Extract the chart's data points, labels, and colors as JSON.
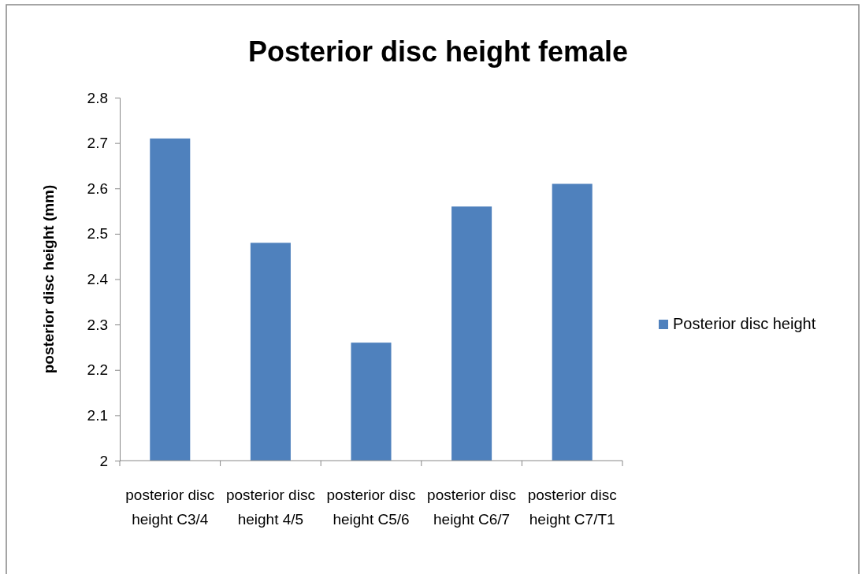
{
  "chart_data": {
    "type": "bar",
    "title": "Posterior disc height female",
    "ylabel": "posterior disc height (mm)",
    "categories": [
      "posterior disc height C3/4",
      "posterior disc height 4/5",
      "posterior disc height C5/6",
      "posterior disc height C6/7",
      "posterior disc height C7/T1"
    ],
    "series": [
      {
        "name": "Posterior disc height",
        "color": "#4f81bd",
        "values": [
          2.71,
          2.48,
          2.26,
          2.56,
          2.61
        ]
      }
    ],
    "ylim": [
      2,
      2.8
    ],
    "yticks": [
      2,
      2.1,
      2.2,
      2.3,
      2.4,
      2.5,
      2.6,
      2.7,
      2.8
    ],
    "grid": false,
    "legend": "right"
  }
}
